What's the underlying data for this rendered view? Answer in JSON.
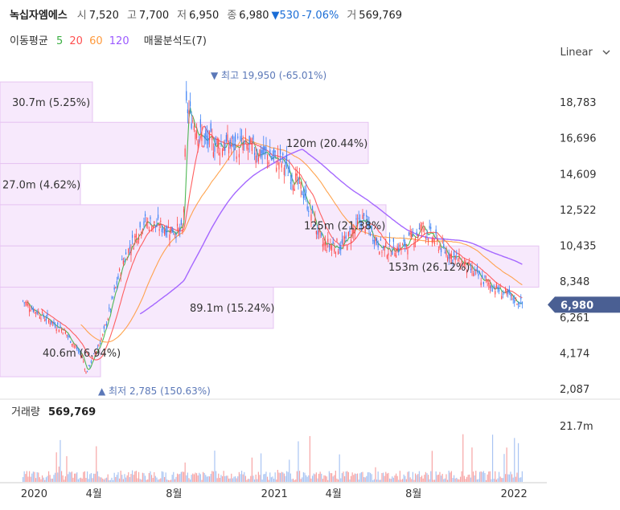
{
  "header": {
    "name": "녹십자엠에스",
    "open_label": "시",
    "open": "7,520",
    "high_label": "고",
    "high": "7,700",
    "low_label": "저",
    "low": "6,950",
    "close_label": "종",
    "close": "6,980",
    "change": "▼530",
    "change_pct": "-7.06%",
    "volume_label": "거",
    "volume": "569,769"
  },
  "ma_legend": {
    "label": "이동평균",
    "periods": [
      "5",
      "20",
      "60",
      "120"
    ],
    "colors": [
      "#3cb043",
      "#ff5050",
      "#ff9a3c",
      "#9b59ff"
    ],
    "profile_label": "매물분석도(7)"
  },
  "scale_mode": "Linear",
  "colors": {
    "up": "#ff4d4d",
    "down": "#3b82f6",
    "profile": "#e9c7f7",
    "price_tag": "#4a5f93"
  },
  "chart_data": {
    "type": "candlestick",
    "y_ticks": [
      "18,783",
      "16,696",
      "14,609",
      "12,522",
      "10,435",
      "8,348",
      "6,261",
      "4,174",
      "2,087"
    ],
    "x_ticks": [
      "2020",
      "4월",
      "8월",
      "2021",
      "4월",
      "8월",
      "2022"
    ],
    "current_price": "6,980",
    "max_marker": "최고 19,950 (-65.01%)",
    "min_marker": "최저 2,785 (150.63%)",
    "volume_panel_label": "거래량",
    "volume_value": "569,769",
    "volume_tick": "21.7m",
    "volume_profile": [
      {
        "price_low": 17600,
        "price_high": 19950,
        "label": "30.7m (5.25%)"
      },
      {
        "price_low": 15200,
        "price_high": 17600,
        "label": "120m (20.44%)"
      },
      {
        "price_low": 12800,
        "price_high": 15200,
        "label": "27.0m (4.62%)"
      },
      {
        "price_low": 10400,
        "price_high": 12800,
        "label": "125m (21.38%)"
      },
      {
        "price_low": 8000,
        "price_high": 10400,
        "label": "153m (26.12%)"
      },
      {
        "price_low": 5600,
        "price_high": 8000,
        "label": "89.1m (15.24%)"
      },
      {
        "price_low": 2785,
        "price_high": 5600,
        "label": "40.6m (6.94%)"
      }
    ],
    "close_series": [
      [
        "2019-12",
        7200
      ],
      [
        "2020-01",
        6300
      ],
      [
        "2020-02",
        5500
      ],
      [
        "2020-03",
        3900
      ],
      [
        "2020-03-20",
        3000
      ],
      [
        "2020-04",
        5200
      ],
      [
        "2020-05",
        9500
      ],
      [
        "2020-06",
        11800
      ],
      [
        "2020-07",
        11500
      ],
      [
        "2020-08",
        11200
      ],
      [
        "2020-08-20",
        18500
      ],
      [
        "2020-09",
        16500
      ],
      [
        "2020-10",
        16300
      ],
      [
        "2020-11",
        16200
      ],
      [
        "2020-12",
        15800
      ],
      [
        "2021-01",
        15200
      ],
      [
        "2021-02",
        13500
      ],
      [
        "2021-03",
        10500
      ],
      [
        "2021-04",
        10400
      ],
      [
        "2021-05",
        12000
      ],
      [
        "2021-06",
        10200
      ],
      [
        "2021-07",
        10300
      ],
      [
        "2021-08",
        11500
      ],
      [
        "2021-09",
        10200
      ],
      [
        "2021-10",
        9400
      ],
      [
        "2021-11",
        8400
      ],
      [
        "2021-12",
        7700
      ],
      [
        "2022-01",
        6980
      ]
    ]
  }
}
